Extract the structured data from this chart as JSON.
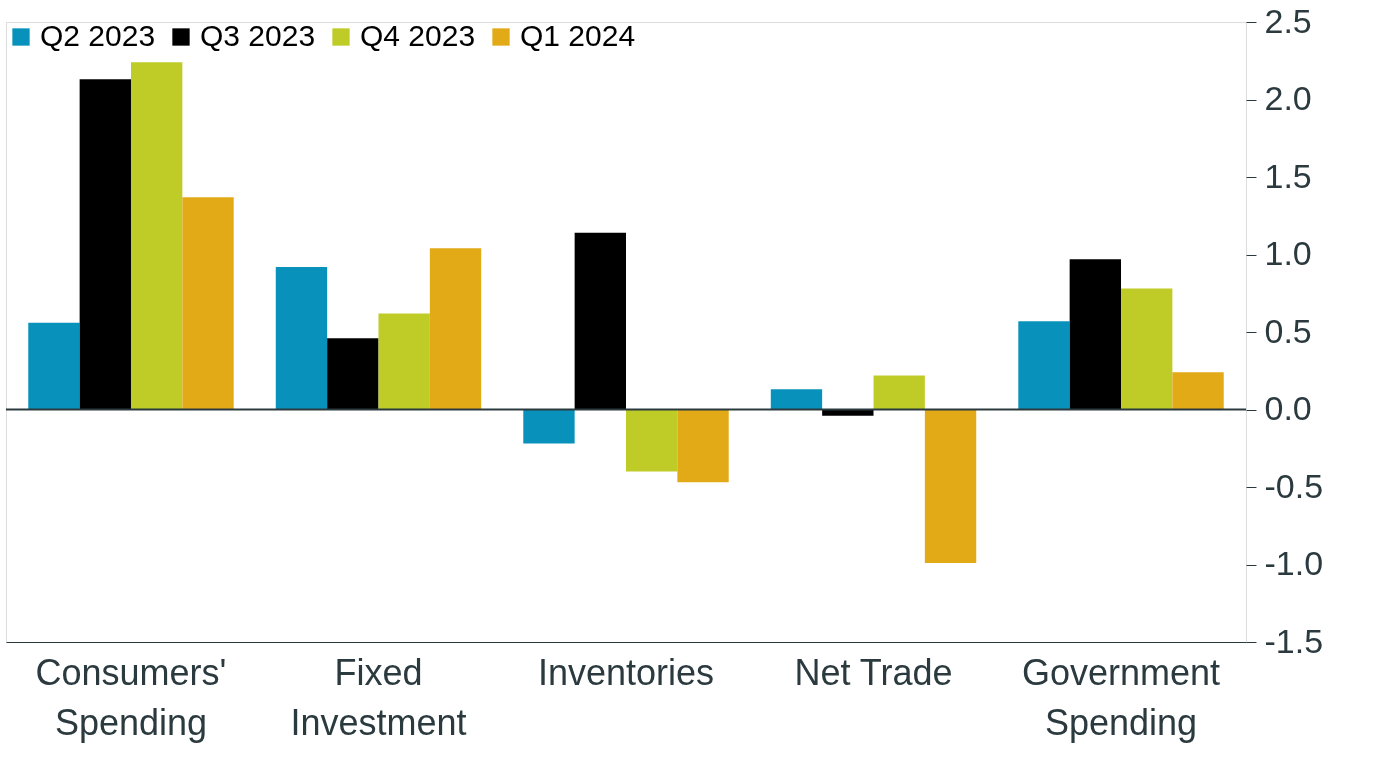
{
  "chart_data": {
    "type": "bar",
    "categories": [
      "Consumers'\nSpending",
      "Fixed\nInvestment",
      "Inventories",
      "Net Trade",
      "Government\nSpending"
    ],
    "series": [
      {
        "name": "Q2 2023",
        "color": "#0892bb",
        "values": [
          0.56,
          0.92,
          -0.22,
          0.13,
          0.57
        ]
      },
      {
        "name": "Q3 2023",
        "color": "#000000",
        "values": [
          2.13,
          0.46,
          1.14,
          -0.04,
          0.97
        ]
      },
      {
        "name": "Q4 2023",
        "color": "#bfcc28",
        "values": [
          2.24,
          0.62,
          -0.4,
          0.22,
          0.78
        ]
      },
      {
        "name": "Q1 2024",
        "color": "#e3aa17",
        "values": [
          1.37,
          1.04,
          -0.47,
          -0.99,
          0.24
        ]
      }
    ],
    "ylim": [
      -1.5,
      2.5
    ],
    "yticks": [
      {
        "value": -1.5,
        "label": "-1.5"
      },
      {
        "value": -1,
        "label": "-1.0"
      },
      {
        "value": -0.5,
        "label": "-0.5"
      },
      {
        "value": 0,
        "label": "0.0"
      },
      {
        "value": 0.5,
        "label": "0.5"
      },
      {
        "value": 1,
        "label": "1.0"
      },
      {
        "value": 1.5,
        "label": "1.5"
      },
      {
        "value": 2,
        "label": "2.0"
      },
      {
        "value": 2.5,
        "label": "2.5"
      }
    ],
    "ref_lines": [
      {
        "axis": "y",
        "value": 0,
        "color": "#2b3a3f"
      }
    ],
    "grid": false,
    "legend": "top left"
  }
}
